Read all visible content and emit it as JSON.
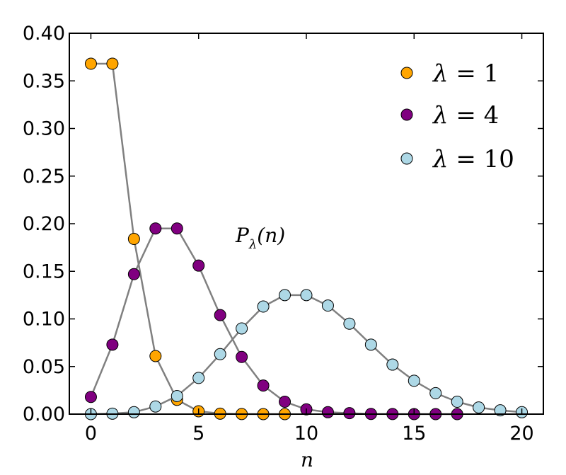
{
  "chart_data": {
    "type": "line",
    "title": "",
    "xlabel": "n",
    "ylabel": "",
    "xlim": [
      -1,
      21
    ],
    "ylim": [
      0,
      0.4
    ],
    "xticks": [
      0,
      5,
      10,
      15,
      20
    ],
    "yticks": [
      0.0,
      0.05,
      0.1,
      0.15,
      0.2,
      0.25,
      0.3,
      0.35,
      0.4
    ],
    "xtick_labels": [
      "0",
      "5",
      "10",
      "15",
      "20"
    ],
    "ytick_labels": [
      "0.00",
      "0.05",
      "0.10",
      "0.15",
      "0.20",
      "0.25",
      "0.30",
      "0.35",
      "0.40"
    ],
    "grid": false,
    "legend_position": "top-right",
    "line_color": "#808080",
    "annotation": {
      "base": "P",
      "sub": "λ",
      "tail": "(n)"
    },
    "series": [
      {
        "name": "λ = 1",
        "legend": {
          "sym": "λ",
          "eq": " = 1"
        },
        "color": "#ffa500",
        "x": [
          0,
          1,
          2,
          3,
          4,
          5,
          6,
          7,
          8,
          9
        ],
        "values": [
          0.368,
          0.368,
          0.184,
          0.061,
          0.015,
          0.003,
          0.0005,
          0.0001,
          0.0,
          0.0
        ]
      },
      {
        "name": "λ = 4",
        "legend": {
          "sym": "λ",
          "eq": " = 4"
        },
        "color": "#800080",
        "x": [
          0,
          1,
          2,
          3,
          4,
          5,
          6,
          7,
          8,
          9,
          10,
          11,
          12,
          13,
          14,
          15,
          16,
          17
        ],
        "values": [
          0.018,
          0.073,
          0.147,
          0.195,
          0.195,
          0.156,
          0.104,
          0.06,
          0.03,
          0.013,
          0.005,
          0.002,
          0.001,
          0.0002,
          0.0001,
          0.0,
          0.0,
          0.0
        ]
      },
      {
        "name": "λ = 10",
        "legend": {
          "sym": "λ",
          "eq": " = 10"
        },
        "color": "#add8e6",
        "x": [
          0,
          1,
          2,
          3,
          4,
          5,
          6,
          7,
          8,
          9,
          10,
          11,
          12,
          13,
          14,
          15,
          16,
          17,
          18,
          19,
          20
        ],
        "values": [
          0.0,
          0.0005,
          0.002,
          0.008,
          0.019,
          0.038,
          0.063,
          0.09,
          0.113,
          0.125,
          0.125,
          0.114,
          0.095,
          0.073,
          0.052,
          0.035,
          0.022,
          0.013,
          0.007,
          0.004,
          0.002
        ]
      }
    ]
  }
}
